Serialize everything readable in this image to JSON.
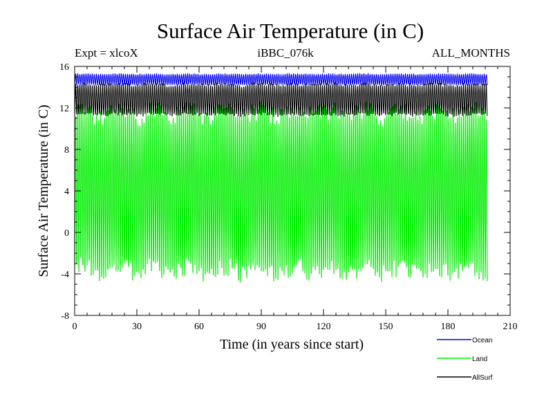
{
  "chart_data": {
    "type": "line",
    "title": "Surface Air Temperature (in C)",
    "subtitle_left": "Expt = xlcoX",
    "subtitle_center": "iBBC_076k",
    "subtitle_right": "ALL_MONTHS",
    "xlabel": "Time (in years since start)",
    "ylabel": "Surface Air Temperature (in C)",
    "xlim": [
      0,
      210
    ],
    "ylim": [
      -8,
      16
    ],
    "x_ticks": [
      0,
      30,
      60,
      90,
      120,
      150,
      180,
      210
    ],
    "y_ticks": [
      -8,
      -4,
      0,
      4,
      8,
      12,
      16
    ],
    "x_tick_labels": [
      "0",
      "30",
      "60",
      "90",
      "120",
      "150",
      "180",
      "210"
    ],
    "y_tick_labels": [
      "-8",
      "-4",
      "0",
      "4",
      "8",
      "12",
      "16"
    ],
    "x_minor_step": 6,
    "y_minor_step": 1,
    "data_x_range": [
      0,
      199
    ],
    "legend": {
      "placement": "bottom-right"
    },
    "series": [
      {
        "name": "Ocean",
        "color": "#0000ee",
        "min_approx": 14.2,
        "max_approx": 15.3,
        "mean_approx": 14.7,
        "description": "monthly values, ~200 years"
      },
      {
        "name": "Land",
        "color": "#00ee00",
        "min_approx": -4.5,
        "max_approx": 12.3,
        "mean_approx": 4.0,
        "description": "monthly values, ~200 years"
      },
      {
        "name": "AllSurf",
        "color": "#000000",
        "min_approx": 11.2,
        "max_approx": 14.4,
        "mean_approx": 12.8,
        "description": "monthly values, ~200 years"
      }
    ]
  }
}
